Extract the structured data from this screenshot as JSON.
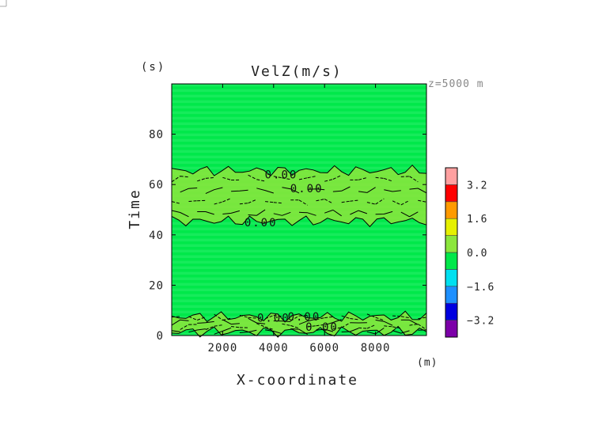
{
  "chart_data": {
    "type": "heatmap",
    "title": "VelZ(m/s)",
    "annotation": "z=5000 m",
    "xlabel": "X-coordinate",
    "xunit": "(m)",
    "ylabel": "Time",
    "yunit": "(s)",
    "xlim": [
      0,
      10000
    ],
    "ylim": [
      0,
      100
    ],
    "xticks": [
      2000,
      4000,
      6000,
      8000
    ],
    "yticks": [
      0,
      20,
      40,
      60,
      80
    ],
    "contour_labels": [
      {
        "text": "0.00",
        "x": 4300,
        "y": 64
      },
      {
        "text": "0.00",
        "x": 5300,
        "y": 58.5
      },
      {
        "text": "0.00",
        "x": 3500,
        "y": 45
      },
      {
        "text": "0.00",
        "x": 4000,
        "y": 7
      },
      {
        "text": "0.00",
        "x": 5200,
        "y": 7.5
      },
      {
        "text": "0.00",
        "x": 5900,
        "y": 3.5
      }
    ],
    "colorbar": {
      "levels": [
        -4.0,
        -3.2,
        -2.4,
        -1.6,
        -0.8,
        0.0,
        0.8,
        1.6,
        2.4,
        3.2,
        4.0
      ],
      "colors": [
        "#7c00a8",
        "#0000e0",
        "#1e90ff",
        "#00e0f0",
        "#00e84a",
        "#8ce63c",
        "#e6f000",
        "#ff9a00",
        "#ff0000",
        "#ffa0a0"
      ],
      "ticks": [
        -3.2,
        -1.6,
        0.0,
        1.6,
        3.2
      ],
      "tick_labels": [
        "−3.2",
        "−1.6",
        "0.0",
        "1.6",
        "3.2"
      ]
    },
    "background_value_range": [
      -0.8,
      0.0
    ],
    "positive_bands_time": [
      [
        44,
        67
      ],
      [
        0,
        9
      ]
    ]
  }
}
